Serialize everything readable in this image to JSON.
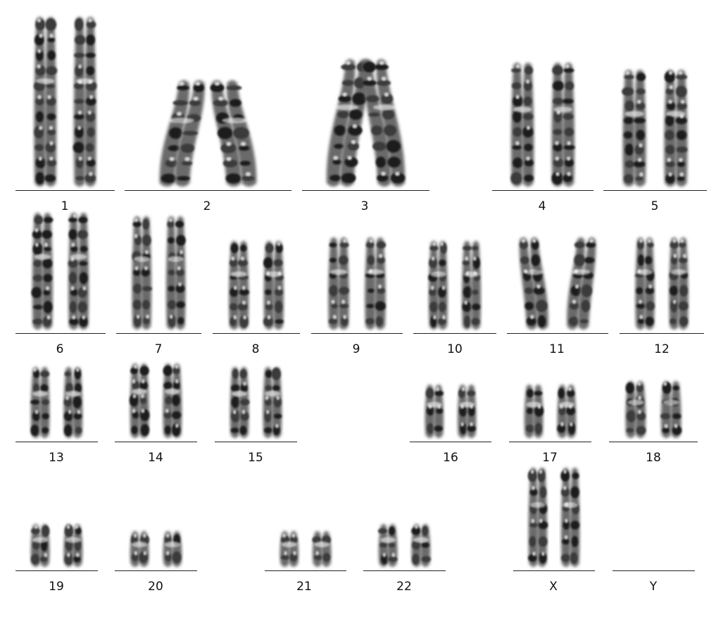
{
  "chromosomes": [
    {
      "label": "1",
      "count": 2
    },
    {
      "label": "2",
      "count": 2
    },
    {
      "label": "3",
      "count": 2
    },
    {
      "label": "4",
      "count": 2
    },
    {
      "label": "5",
      "count": 2
    },
    {
      "label": "6",
      "count": 2
    },
    {
      "label": "7",
      "count": 2
    },
    {
      "label": "8",
      "count": 2
    },
    {
      "label": "9",
      "count": 2
    },
    {
      "label": "10",
      "count": 2
    },
    {
      "label": "11",
      "count": 2
    },
    {
      "label": "12",
      "count": 2
    },
    {
      "label": "13",
      "count": 2
    },
    {
      "label": "14",
      "count": 2
    },
    {
      "label": "15",
      "count": 2
    },
    {
      "label": "16",
      "count": 2
    },
    {
      "label": "17",
      "count": 2
    },
    {
      "label": "18",
      "count": 2
    },
    {
      "label": "19",
      "count": 2
    },
    {
      "label": "20",
      "count": 2
    },
    {
      "label": "21",
      "count": 2
    },
    {
      "label": "22",
      "count": 2
    },
    {
      "label": "X",
      "count": 2
    },
    {
      "label": "Y",
      "count": 0
    }
  ]
}
